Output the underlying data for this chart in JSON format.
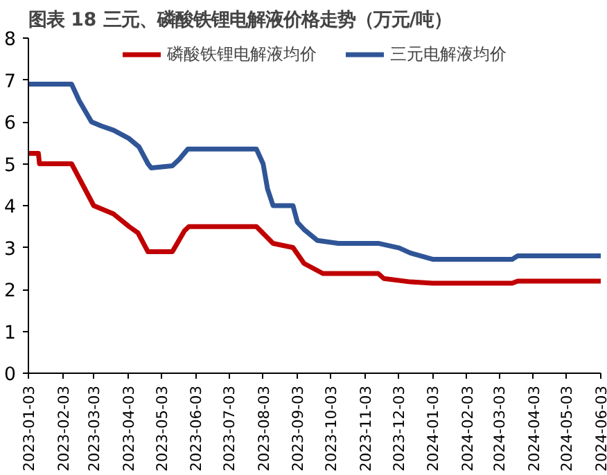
{
  "chart_data": {
    "type": "line",
    "title": "图表 18 三元、磷酸铁锂电解液价格走势（万元/吨）",
    "series": [
      {
        "name": "磷酸铁锂电解液均价",
        "color": "#c00000",
        "x": [
          "2023-01-03",
          "2023-01-12",
          "2023-01-13",
          "2023-02-11",
          "2023-02-21",
          "2023-03-03",
          "2023-03-21",
          "2023-04-04",
          "2023-04-12",
          "2023-04-21",
          "2023-05-13",
          "2023-05-24",
          "2023-05-28",
          "2023-07-28",
          "2023-08-12",
          "2023-08-30",
          "2023-09-09",
          "2023-09-26",
          "2023-11-15",
          "2023-11-20",
          "2023-12-14",
          "2024-01-03",
          "2024-03-15",
          "2024-03-20",
          "2024-06-03"
        ],
        "values": [
          5.25,
          5.25,
          5.0,
          5.0,
          4.5,
          4.0,
          3.8,
          3.5,
          3.35,
          2.9,
          2.9,
          3.4,
          3.5,
          3.5,
          3.1,
          3.0,
          2.62,
          2.38,
          2.38,
          2.26,
          2.18,
          2.15,
          2.15,
          2.2,
          2.2
        ]
      },
      {
        "name": "三元电解液均价",
        "color": "#2f5597",
        "x": [
          "2023-01-03",
          "2023-02-11",
          "2023-02-18",
          "2023-03-01",
          "2023-03-10",
          "2023-03-21",
          "2023-04-04",
          "2023-04-13",
          "2023-04-21",
          "2023-04-24",
          "2023-05-13",
          "2023-05-19",
          "2023-05-27",
          "2023-07-28",
          "2023-08-03",
          "2023-08-07",
          "2023-08-12",
          "2023-08-30",
          "2023-09-03",
          "2023-09-09",
          "2023-09-21",
          "2023-10-10",
          "2023-11-15",
          "2023-12-04",
          "2023-12-14",
          "2024-01-03",
          "2024-03-15",
          "2024-03-20",
          "2024-06-03"
        ],
        "values": [
          6.9,
          6.9,
          6.5,
          6.0,
          5.9,
          5.8,
          5.6,
          5.4,
          5.0,
          4.9,
          4.95,
          5.1,
          5.35,
          5.35,
          5.0,
          4.4,
          4.0,
          4.0,
          3.6,
          3.43,
          3.17,
          3.1,
          3.1,
          2.99,
          2.87,
          2.72,
          2.72,
          2.8,
          2.8
        ]
      }
    ],
    "xlim": [
      "2023-01-03",
      "2024-06-03"
    ],
    "xticks": [
      "2023-01-03",
      "2023-02-03",
      "2023-03-03",
      "2023-04-03",
      "2023-05-03",
      "2023-06-03",
      "2023-07-03",
      "2023-08-03",
      "2023-09-03",
      "2023-10-03",
      "2023-11-03",
      "2023-12-03",
      "2024-01-03",
      "2024-02-03",
      "2024-03-03",
      "2024-04-03",
      "2024-05-03",
      "2024-06-03"
    ],
    "ylim": [
      0,
      8
    ],
    "yticks": [
      0,
      1,
      2,
      3,
      4,
      5,
      6,
      7,
      8
    ],
    "grid": false,
    "legend": "top",
    "marker": "none",
    "line_style": "solid"
  }
}
